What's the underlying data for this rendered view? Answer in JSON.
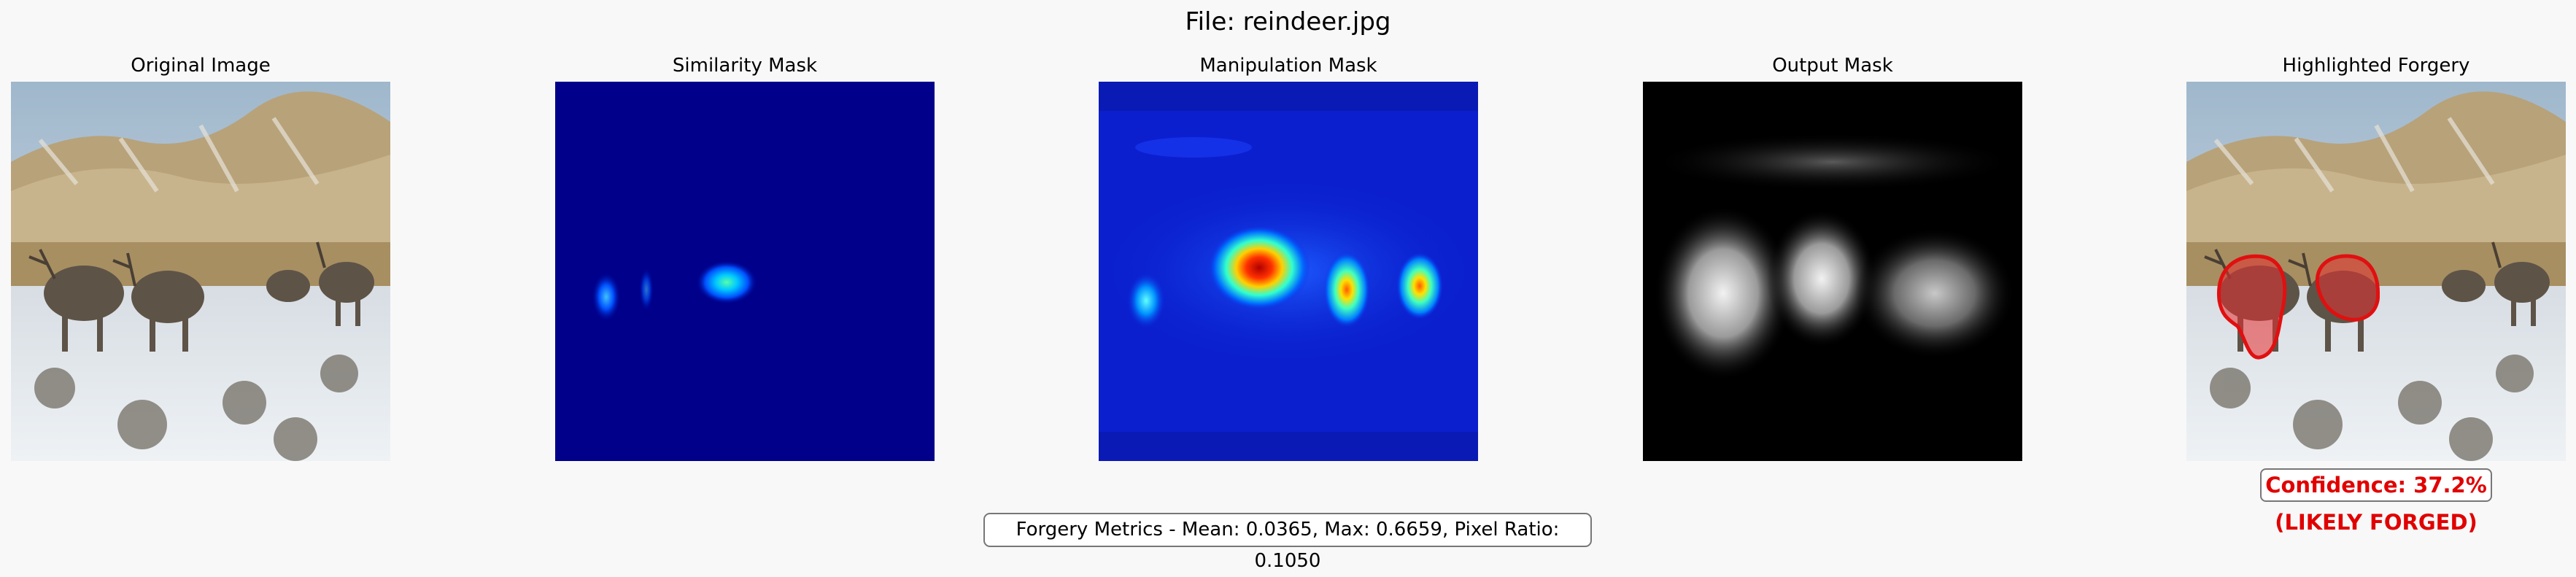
{
  "figure": {
    "title": "File: reindeer.jpg"
  },
  "panels": {
    "original": {
      "title": "Original Image"
    },
    "similarity": {
      "title": "Similarity Mask"
    },
    "manipulation": {
      "title": "Manipulation Mask"
    },
    "output": {
      "title": "Output Mask"
    },
    "highlighted": {
      "title": "Highlighted Forgery"
    }
  },
  "result": {
    "confidence": "Confidence: 37.2%",
    "verdict": "(LIKELY FORGED)"
  },
  "metrics": {
    "text": "Forgery Metrics - Mean: 0.0365, Max: 0.6659, Pixel Ratio: 0.1050"
  },
  "colors": {
    "background": "#f8f8f8",
    "alert": "#e00000",
    "jet_background": "#00008b"
  }
}
